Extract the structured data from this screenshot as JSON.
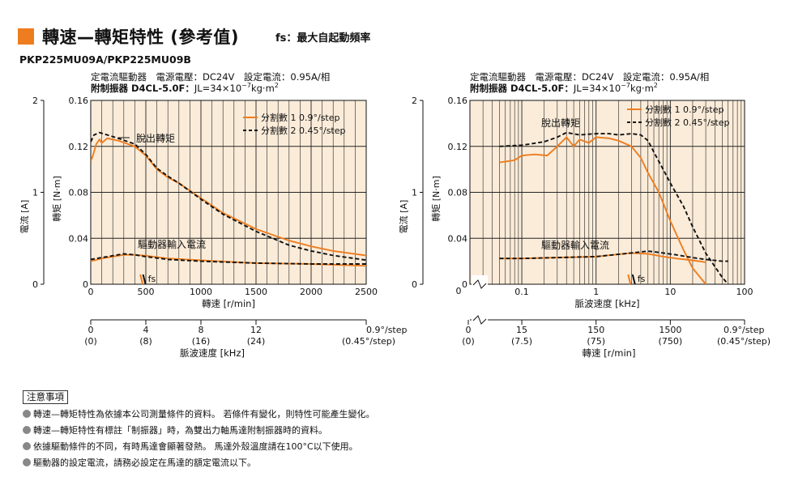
{
  "header": {
    "title": "轉速—轉矩特性 (參考值)",
    "fs_note": "fs：最大自起動頻率",
    "model": "PKP225MU09A/PKP225MU09B"
  },
  "charts_info": {
    "line1": "定電流驅動器　電源電壓：DC24V　設定電流：0.95A/相",
    "line2_bold": "附制振器 D4CL-5.0F：",
    "line2_rest": "JL=34×10",
    "line2_sup": "−7",
    "line2_tail": "kg·m",
    "line2_sup2": "2",
    "legend1": "分割數 1  0.9°/step",
    "legend2": "分割數 2  0.45°/step",
    "pullout_label": "脫出轉矩",
    "driver_label": "驅動器輸入電流",
    "fs_label": "fs",
    "torque_axis_label": "轉矩 [N·m]",
    "current_axis_label": "電流 [A]"
  },
  "chart_data": [
    {
      "type": "line",
      "xlabel": "轉速 [r/min]",
      "ylabel": "轉矩 [N·m]",
      "y2label": "電流 [A]",
      "xlim": [
        0,
        2500
      ],
      "ylim": [
        0,
        0.16
      ],
      "y2lim": [
        0,
        2
      ],
      "xticks": [
        "0",
        "500",
        "1000",
        "1500",
        "2000",
        "2500"
      ],
      "yticks": [
        "0",
        "0.04",
        "0.08",
        "0.12",
        "0.16"
      ],
      "y2ticks": [
        "0",
        "1",
        "2"
      ],
      "sub_axis": {
        "xlabel": "脈波速度 [kHz]",
        "ticks": [
          "0",
          "4",
          "8",
          "12"
        ],
        "ticks_sub": [
          "(0)",
          "(8)",
          "(16)",
          "(24)"
        ],
        "end_label": "0.9°/step",
        "end_label_sub": "(0.45°/step)"
      },
      "series": [
        {
          "name": "分割數 1  0.9°/step",
          "kind": "torque",
          "style": "solid",
          "x": [
            0,
            20,
            50,
            80,
            100,
            150,
            250,
            400,
            500,
            600,
            700,
            800,
            1000,
            1200,
            1500,
            1800,
            2000,
            2200,
            2500
          ],
          "y": [
            0.107,
            0.112,
            0.122,
            0.126,
            0.123,
            0.127,
            0.125,
            0.12,
            0.112,
            0.1,
            0.093,
            0.088,
            0.075,
            0.062,
            0.048,
            0.038,
            0.033,
            0.029,
            0.025
          ]
        },
        {
          "name": "分割數 2  0.45°/step",
          "kind": "torque",
          "style": "dashed",
          "x": [
            0,
            30,
            80,
            150,
            250,
            400,
            500,
            600,
            700,
            800,
            1000,
            1200,
            1500,
            1800,
            2000,
            2200,
            2500
          ],
          "y": [
            0.124,
            0.13,
            0.132,
            0.13,
            0.127,
            0.122,
            0.113,
            0.101,
            0.094,
            0.088,
            0.074,
            0.061,
            0.046,
            0.034,
            0.029,
            0.025,
            0.021
          ]
        },
        {
          "name": "分割數 1  0.9°/step",
          "kind": "current",
          "style": "solid",
          "x": [
            0,
            100,
            200,
            300,
            400,
            500,
            700,
            1000,
            1500,
            2000,
            2500
          ],
          "y": [
            0.25,
            0.28,
            0.3,
            0.32,
            0.32,
            0.31,
            0.28,
            0.26,
            0.23,
            0.22,
            0.2
          ]
        },
        {
          "name": "分割數 2  0.45°/step",
          "kind": "current",
          "style": "dashed",
          "x": [
            0,
            100,
            200,
            300,
            400,
            500,
            700,
            1000,
            1500,
            2000,
            2500
          ],
          "y": [
            0.27,
            0.29,
            0.31,
            0.33,
            0.32,
            0.3,
            0.27,
            0.25,
            0.23,
            0.22,
            0.22
          ]
        }
      ],
      "fs_markers_x": [
        450,
        475
      ]
    },
    {
      "type": "line",
      "xscale": "log",
      "xlabel": "脈波速度 [kHz]",
      "ylabel": "轉矩 [N·m]",
      "y2label": "電流 [A]",
      "xlim": [
        0.02,
        100
      ],
      "ylim": [
        0,
        0.16
      ],
      "y2lim": [
        0,
        2
      ],
      "xticks": [
        "0.1",
        "1",
        "10",
        "100"
      ],
      "yticks": [
        "0",
        "0.04",
        "0.08",
        "0.12",
        "0.16"
      ],
      "y2ticks": [
        "0",
        "1",
        "2"
      ],
      "sub_axis": {
        "xlabel": "轉速 [r/min]",
        "ticks": [
          "0",
          "15",
          "150",
          "1500"
        ],
        "ticks_sub": [
          "(0)",
          "(7.5)",
          "(75)",
          "(750)"
        ],
        "end_label": "0.9°/step",
        "end_label_sub": "(0.45°/step)"
      },
      "series": [
        {
          "name": "分割數 1  0.9°/step",
          "kind": "torque",
          "style": "solid",
          "x": [
            0.05,
            0.08,
            0.1,
            0.15,
            0.22,
            0.3,
            0.4,
            0.5,
            0.6,
            0.8,
            1,
            1.5,
            2,
            3,
            4,
            5,
            7,
            10,
            15,
            20,
            30
          ],
          "y": [
            0.106,
            0.108,
            0.112,
            0.113,
            0.112,
            0.12,
            0.128,
            0.12,
            0.126,
            0.123,
            0.128,
            0.127,
            0.125,
            0.12,
            0.11,
            0.097,
            0.08,
            0.055,
            0.03,
            0.014,
            0.0
          ]
        },
        {
          "name": "分割數 2  0.45°/step",
          "kind": "torque",
          "style": "dashed",
          "x": [
            0.05,
            0.1,
            0.2,
            0.3,
            0.4,
            0.6,
            1,
            1.5,
            2,
            3,
            4,
            5,
            6,
            8,
            10,
            15,
            20,
            30,
            50,
            60
          ],
          "y": [
            0.12,
            0.121,
            0.124,
            0.128,
            0.132,
            0.13,
            0.131,
            0.131,
            0.13,
            0.131,
            0.13,
            0.125,
            0.115,
            0.1,
            0.088,
            0.068,
            0.05,
            0.027,
            0.006,
            0.0
          ]
        },
        {
          "name": "分割數 1  0.9°/step",
          "kind": "current",
          "style": "solid",
          "x": [
            0.05,
            0.1,
            0.3,
            1,
            3,
            5,
            8,
            12,
            20,
            30
          ],
          "y": [
            0.28,
            0.28,
            0.29,
            0.3,
            0.34,
            0.33,
            0.3,
            0.28,
            0.26,
            0.24
          ]
        },
        {
          "name": "分割數 2  0.45°/step",
          "kind": "current",
          "style": "dashed",
          "x": [
            0.05,
            0.1,
            0.3,
            1,
            3,
            5,
            8,
            12,
            20,
            30,
            50,
            60
          ],
          "y": [
            0.28,
            0.28,
            0.29,
            0.3,
            0.34,
            0.36,
            0.34,
            0.32,
            0.29,
            0.27,
            0.25,
            0.25
          ]
        }
      ],
      "fs_markers_x": [
        2.7,
        3.1
      ]
    }
  ],
  "colors": {
    "plot_bg": "#fbecd9",
    "series1": "#ee7d1f",
    "series2": "#111111",
    "header_square": "#ee7d1f"
  },
  "notes": {
    "title": "注意事項",
    "items": [
      "轉速—轉矩特性為依據本公司測量條件的資料。 若條件有變化，則特性可能產生變化。",
      "轉速—轉矩特性有標註「制振器」時，為雙出力軸馬達附制振器時的資料。",
      "依據驅動條件的不同，有時馬達會顯著發熱。 馬達外殼溫度請在100°C以下使用。",
      "驅動器的設定電流，請務必設定在馬達的額定電流以下。"
    ]
  }
}
